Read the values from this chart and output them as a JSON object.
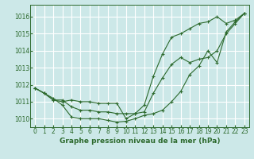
{
  "xlabel": "Graphe pression niveau de la mer (hPa)",
  "xlim": [
    -0.5,
    23.5
  ],
  "ylim": [
    1009.5,
    1016.7
  ],
  "yticks": [
    1010,
    1011,
    1012,
    1013,
    1014,
    1015,
    1016
  ],
  "xticks": [
    0,
    1,
    2,
    3,
    4,
    5,
    6,
    7,
    8,
    9,
    10,
    11,
    12,
    13,
    14,
    15,
    16,
    17,
    18,
    19,
    20,
    21,
    22,
    23
  ],
  "bg_color": "#cce8e8",
  "grid_color": "#ffffff",
  "line_color": "#2d6a2d",
  "lines": [
    [
      1011.8,
      1011.5,
      1011.2,
      1010.8,
      1010.1,
      1010.0,
      1010.0,
      1010.0,
      1009.9,
      1009.8,
      1009.85,
      1010.0,
      1010.2,
      1010.3,
      1010.5,
      1011.0,
      1011.6,
      1012.6,
      1013.1,
      1014.0,
      1013.3,
      1015.1,
      1015.7,
      1016.2
    ],
    [
      1011.8,
      1011.5,
      1011.1,
      1011.1,
      1010.7,
      1010.5,
      1010.5,
      1010.4,
      1010.4,
      1010.3,
      1010.3,
      1010.3,
      1010.4,
      1011.5,
      1012.4,
      1013.2,
      1013.6,
      1013.3,
      1013.5,
      1013.6,
      1014.0,
      1015.0,
      1015.6,
      1016.2
    ],
    [
      1011.8,
      1011.5,
      1011.1,
      1011.0,
      1011.1,
      1011.0,
      1011.0,
      1010.9,
      1010.9,
      1010.9,
      1010.0,
      1010.3,
      1010.8,
      1012.5,
      1013.8,
      1014.8,
      1015.0,
      1015.3,
      1015.6,
      1015.7,
      1016.0,
      1015.6,
      1015.8,
      1016.2
    ]
  ]
}
